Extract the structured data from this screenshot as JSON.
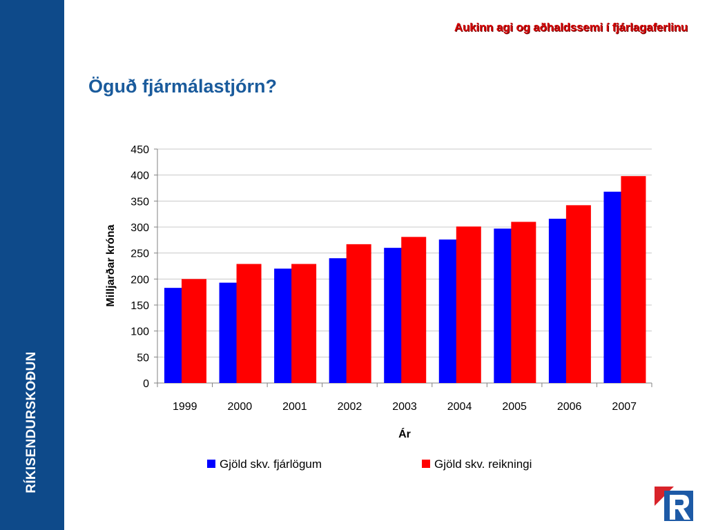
{
  "sidebar": {
    "label": "RÍKISENDURSKOÐUN"
  },
  "header": {
    "tagline": "Aukinn agi og aðhaldssemi í fjárlagaferlinu"
  },
  "slide": {
    "title": "Öguð fjármálastjórn?"
  },
  "colors": {
    "sidebar": "#0e4a8a",
    "series1": "#0000ff",
    "series2": "#ff0000",
    "tagline": "#d40000",
    "title": "#1a5b9c"
  },
  "chart_data": {
    "type": "bar",
    "categories": [
      "1999",
      "2000",
      "2001",
      "2002",
      "2003",
      "2004",
      "2005",
      "2006",
      "2007"
    ],
    "series": [
      {
        "name": "Gjöld skv. fjárlögum",
        "color": "#0000ff",
        "values": [
          183,
          193,
          220,
          240,
          260,
          276,
          297,
          316,
          368
        ]
      },
      {
        "name": "Gjöld skv. reikningi",
        "color": "#ff0000",
        "values": [
          200,
          229,
          229,
          267,
          281,
          301,
          310,
          342,
          398
        ]
      }
    ],
    "title": "",
    "xlabel": "Ár",
    "ylabel": "Milljarðar króna",
    "ylim": [
      0,
      450
    ],
    "yticks": [
      0,
      50,
      100,
      150,
      200,
      250,
      300,
      350,
      400,
      450
    ],
    "grid": true,
    "legend": "bottom"
  }
}
